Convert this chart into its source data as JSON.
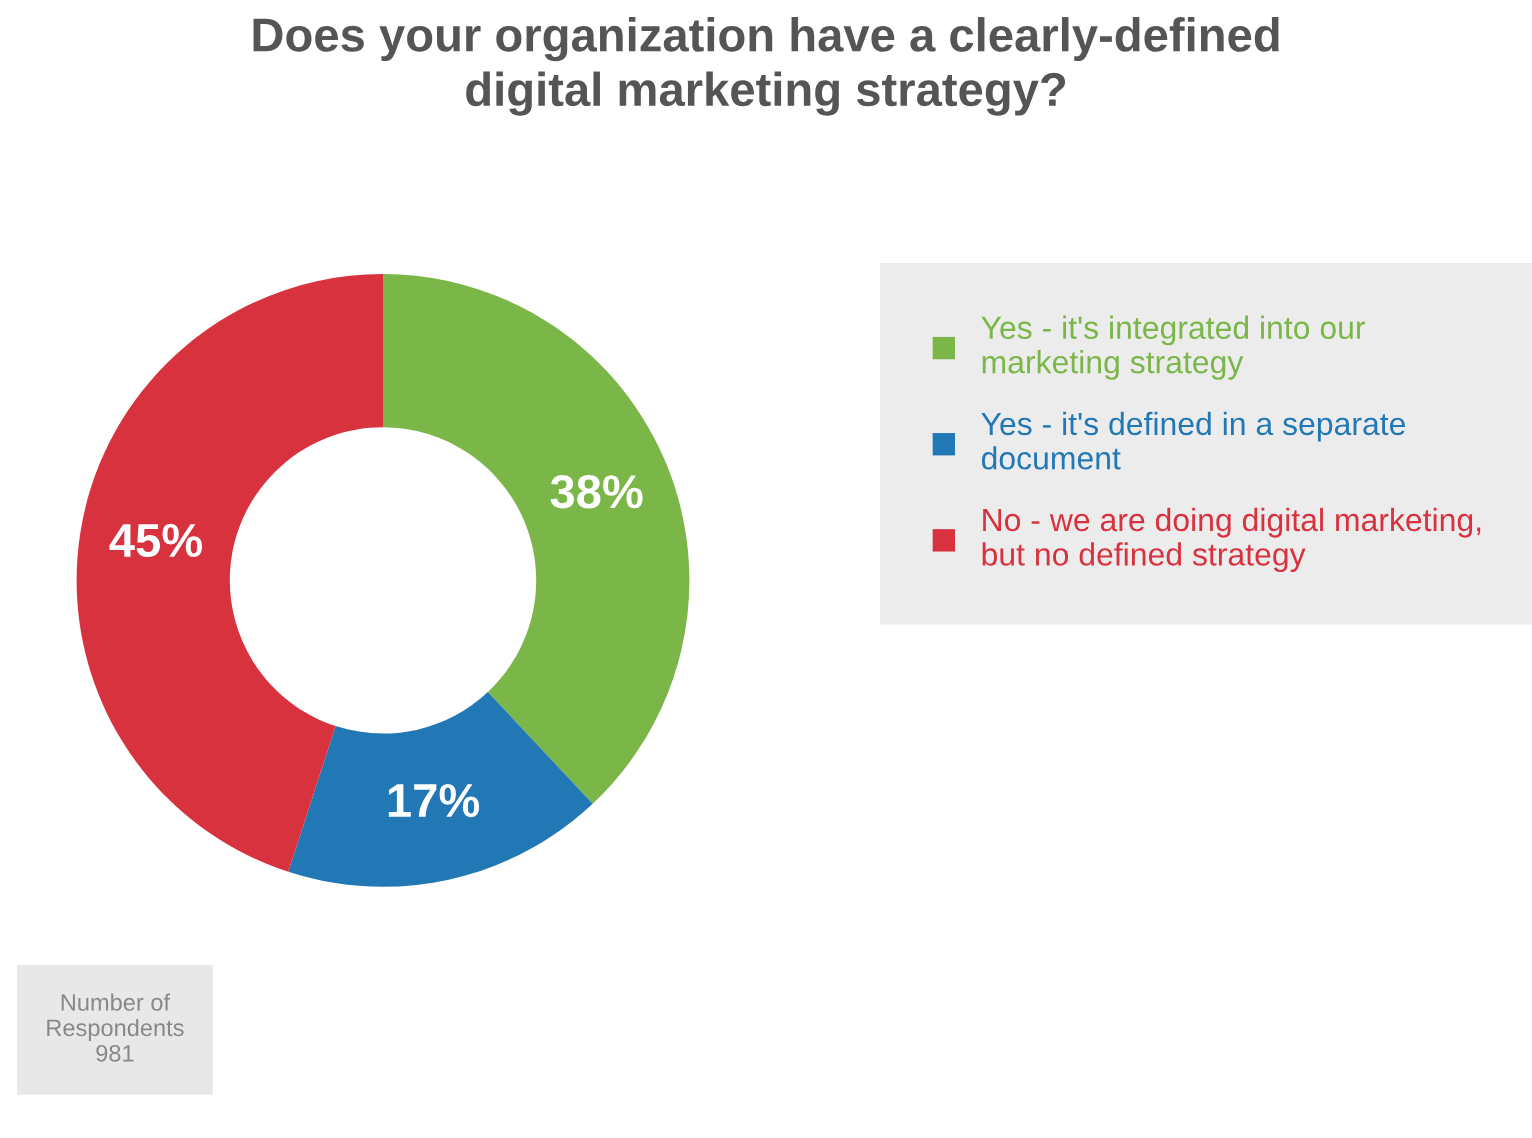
{
  "chart_data": {
    "type": "donut",
    "title": "Does your organization have a clearly-defined\ndigital marketing strategy?",
    "categories": [
      "Yes - it's integrated into our\nmarketing strategy",
      "Yes - it's defined in a separate\ndocument",
      "No - we are doing digital marketing,\nbut no defined strategy"
    ],
    "values": [
      38,
      17,
      45
    ],
    "colors": [
      "#7ab648",
      "#2278b5",
      "#d8323f"
    ],
    "value_labels": [
      "38%",
      "17%",
      "45%"
    ],
    "legend": "right",
    "annotations": [
      "Number of\nRespondents\n981"
    ]
  }
}
